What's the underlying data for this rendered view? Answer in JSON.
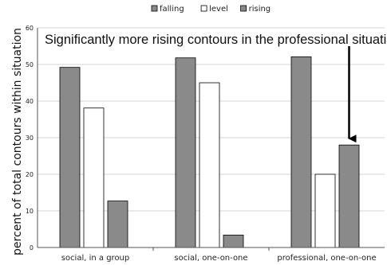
{
  "chart_data": {
    "type": "bar",
    "ylabel": "percent of total contours within situation",
    "ylim": [
      0,
      60
    ],
    "yticks": [
      "0",
      "10",
      "20",
      "30",
      "40",
      "50",
      "60"
    ],
    "grid": true,
    "legend_position": "top-center",
    "categories": [
      "social, in a group",
      "social, one-on-one",
      "professional, one-on-one"
    ],
    "series": [
      {
        "name": "falling",
        "values": [
          49.2,
          51.8,
          52.1
        ],
        "color": "#8a8a8a"
      },
      {
        "name": "level",
        "values": [
          38.1,
          45.0,
          20.0
        ],
        "color": "#ffffff"
      },
      {
        "name": "rising",
        "values": [
          12.7,
          3.4,
          28.0
        ],
        "color": "#8a8a8a"
      }
    ],
    "annotation": {
      "text": "Significantly more rising contours in the professional situation",
      "target_category": 2,
      "target_series": 2
    }
  }
}
